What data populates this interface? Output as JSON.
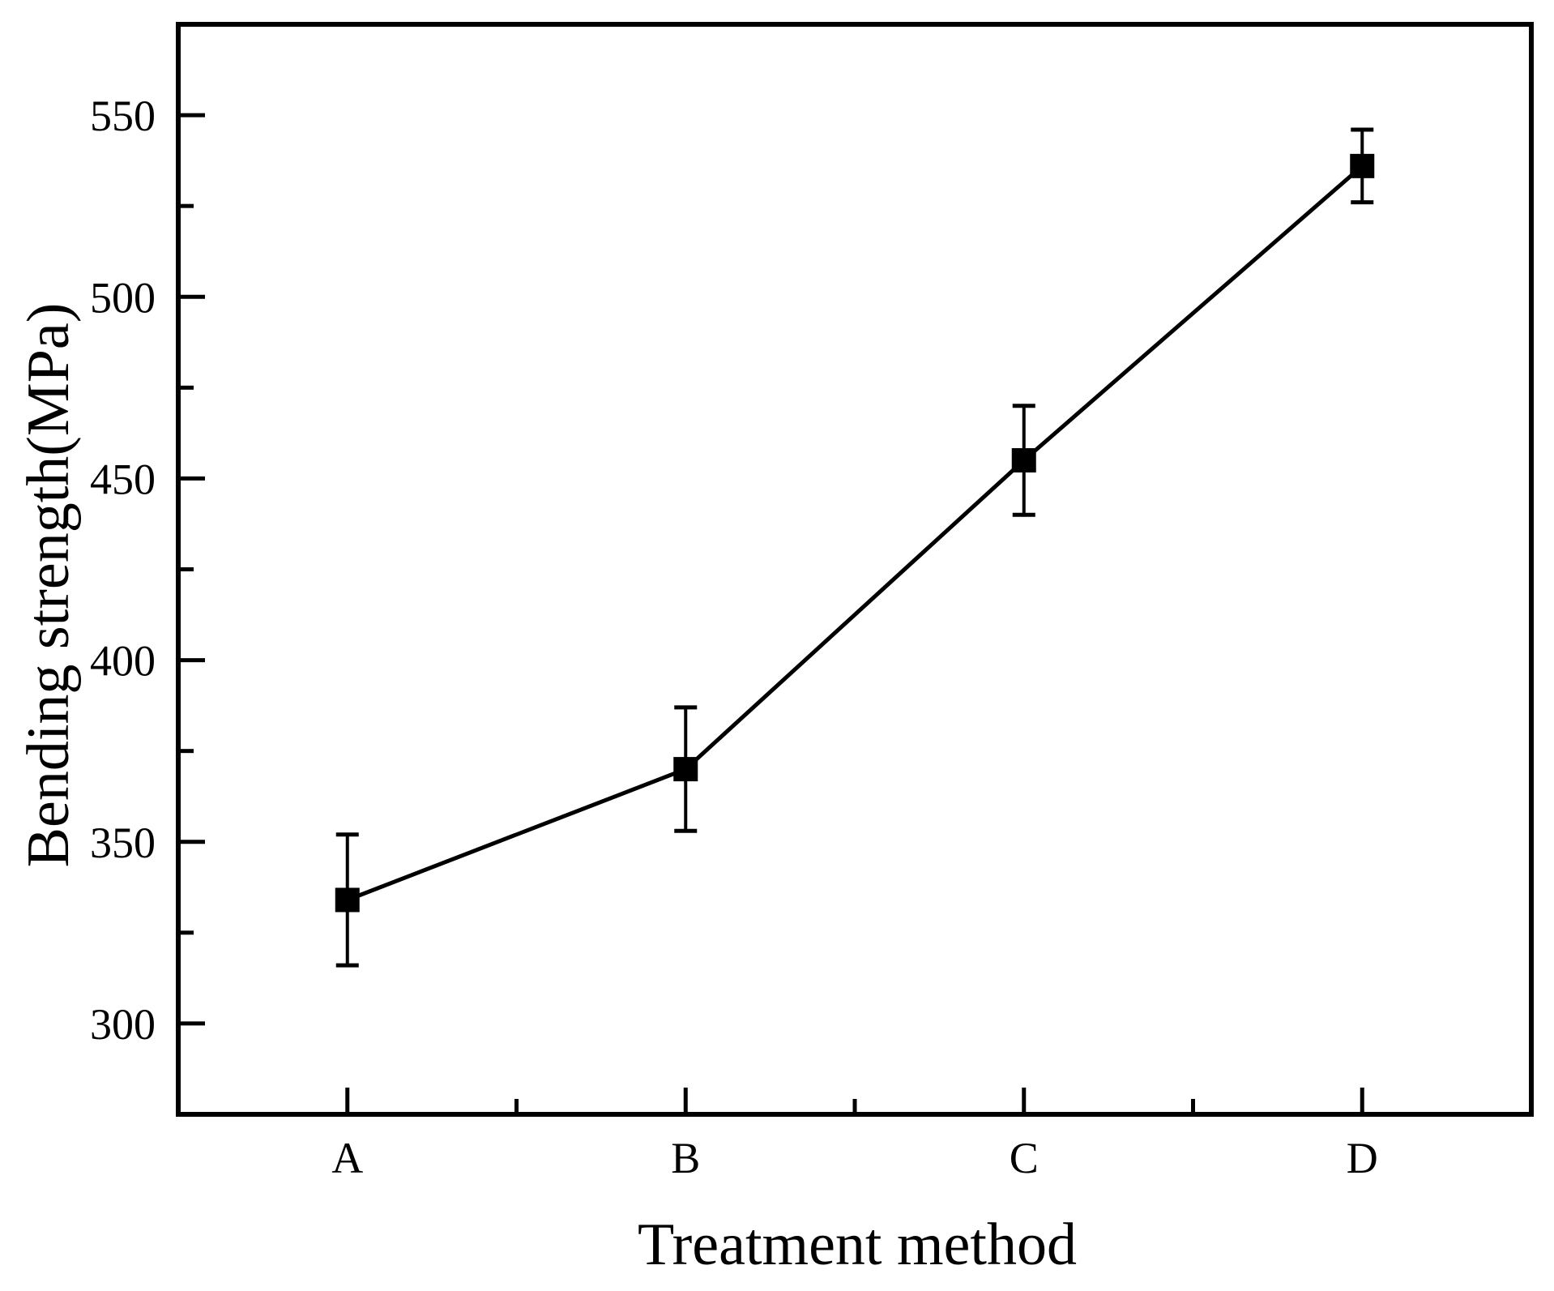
{
  "chart_data": {
    "type": "line",
    "title": "",
    "xlabel": "Treatment method",
    "ylabel": "Bending strength(MPa)",
    "categories": [
      "A",
      "B",
      "C",
      "D"
    ],
    "series": [
      {
        "name": "Bending strength",
        "values": [
          334,
          370,
          455,
          536
        ],
        "errors": [
          18,
          17,
          15,
          10
        ]
      }
    ],
    "ylim": [
      275,
      575
    ],
    "yticks_major": [
      300,
      350,
      400,
      450,
      500,
      550
    ],
    "yticks_minor": [
      325,
      375,
      425,
      475,
      525
    ],
    "grid": false,
    "legend": false,
    "marker": "filled-square",
    "line_color": "#000000",
    "background": "#ffffff"
  }
}
